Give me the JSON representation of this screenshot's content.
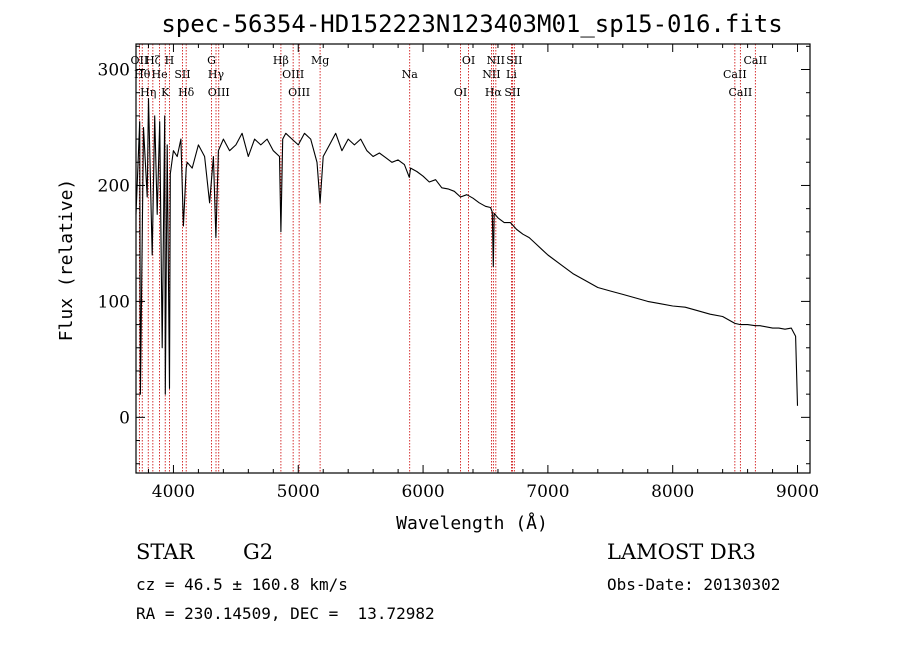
{
  "chart_data": {
    "type": "line",
    "title": "spec-56354-HD152223N123403M01_sp15-016.fits",
    "xlabel": "Wavelength (Å)",
    "ylabel": "Flux (relative)",
    "xlim": [
      3700,
      9100
    ],
    "ylim": [
      -48,
      322
    ],
    "x_ticks": [
      4000,
      5000,
      6000,
      7000,
      8000,
      9000
    ],
    "x_tick_labels": [
      "4000",
      "5000",
      "6000",
      "7000",
      "8000",
      "9000"
    ],
    "y_ticks": [
      0,
      100,
      200,
      300
    ],
    "y_tick_labels": [
      "0",
      "100",
      "200",
      "300"
    ],
    "line_color": "#000000",
    "marker_color": "#cc0000",
    "series": [
      {
        "name": "spectrum",
        "x": [
          3700,
          3730,
          3735,
          3760,
          3790,
          3800,
          3830,
          3850,
          3870,
          3890,
          3910,
          3930,
          3935,
          3950,
          3968,
          3975,
          4000,
          4030,
          4060,
          4080,
          4102,
          4110,
          4150,
          4200,
          4250,
          4290,
          4320,
          4340,
          4360,
          4400,
          4450,
          4500,
          4550,
          4600,
          4650,
          4700,
          4750,
          4800,
          4850,
          4861,
          4875,
          4900,
          4950,
          5000,
          5050,
          5100,
          5150,
          5175,
          5200,
          5250,
          5300,
          5350,
          5400,
          5450,
          5500,
          5550,
          5600,
          5650,
          5700,
          5750,
          5800,
          5850,
          5890,
          5900,
          5950,
          6000,
          6050,
          6100,
          6150,
          6200,
          6250,
          6300,
          6350,
          6400,
          6450,
          6500,
          6540,
          6555,
          6563,
          6570,
          6600,
          6650,
          6700,
          6750,
          6800,
          6850,
          6900,
          6950,
          7000,
          7100,
          7200,
          7300,
          7400,
          7500,
          7600,
          7700,
          7800,
          7900,
          8000,
          8100,
          8200,
          8300,
          8400,
          8498,
          8542,
          8600,
          8662,
          8700,
          8800,
          8850,
          8900,
          8950,
          8985,
          9000
        ],
        "y": [
          175,
          255,
          20,
          250,
          190,
          275,
          140,
          260,
          175,
          255,
          60,
          260,
          20,
          235,
          25,
          210,
          230,
          225,
          240,
          165,
          215,
          220,
          215,
          235,
          225,
          185,
          225,
          155,
          230,
          240,
          230,
          235,
          245,
          225,
          240,
          235,
          240,
          230,
          225,
          160,
          240,
          245,
          240,
          235,
          245,
          240,
          220,
          185,
          225,
          235,
          245,
          230,
          240,
          235,
          240,
          230,
          225,
          228,
          224,
          220,
          222,
          218,
          207,
          215,
          212,
          208,
          203,
          205,
          198,
          197,
          195,
          190,
          192,
          189,
          185,
          182,
          181,
          177,
          130,
          176,
          172,
          168,
          168,
          162,
          158,
          155,
          150,
          145,
          140,
          132,
          124,
          118,
          112,
          109,
          106,
          103,
          100,
          98,
          96,
          95,
          92,
          89,
          87,
          81,
          80,
          80,
          79,
          79,
          77,
          77,
          76,
          77,
          70,
          10
        ]
      }
    ],
    "annotations": [
      {
        "wavelength": 3727,
        "label": "OII"
      },
      {
        "wavelength": 3750,
        "label": "Hθ"
      },
      {
        "wavelength": 3798,
        "label": "Hη"
      },
      {
        "wavelength": 3835,
        "label": "Hζ"
      },
      {
        "wavelength": 3889,
        "label": "He"
      },
      {
        "wavelength": 3934,
        "label": "K"
      },
      {
        "wavelength": 3968,
        "label": "H"
      },
      {
        "wavelength": 4072,
        "label": "SII"
      },
      {
        "wavelength": 4102,
        "label": "Hδ"
      },
      {
        "wavelength": 4305,
        "label": "G"
      },
      {
        "wavelength": 4341,
        "label": "Hγ"
      },
      {
        "wavelength": 4363,
        "label": "OIII"
      },
      {
        "wavelength": 4861,
        "label": "Hβ"
      },
      {
        "wavelength": 4959,
        "label": "OIII"
      },
      {
        "wavelength": 5007,
        "label": "OIII"
      },
      {
        "wavelength": 5175,
        "label": "Mg"
      },
      {
        "wavelength": 5893,
        "label": "Na"
      },
      {
        "wavelength": 6300,
        "label": "OI"
      },
      {
        "wavelength": 6364,
        "label": "OI"
      },
      {
        "wavelength": 6548,
        "label": "NII"
      },
      {
        "wavelength": 6563,
        "label": "Hα"
      },
      {
        "wavelength": 6583,
        "label": "NII"
      },
      {
        "wavelength": 6708,
        "label": "Li"
      },
      {
        "wavelength": 6716,
        "label": "SII"
      },
      {
        "wavelength": 6731,
        "label": "SII"
      },
      {
        "wavelength": 8498,
        "label": "CaII"
      },
      {
        "wavelength": 8542,
        "label": "CaII"
      },
      {
        "wavelength": 8662,
        "label": "CaII"
      }
    ]
  },
  "info": {
    "object_class": "STAR",
    "subclass": "G2",
    "redshift_text": "cz = 46.5 ± 160.8 km/s",
    "coords_text": "RA = 230.14509, DEC =  13.72982",
    "survey": "LAMOST DR3",
    "obs_date_text": "Obs-Date: 20130302"
  }
}
